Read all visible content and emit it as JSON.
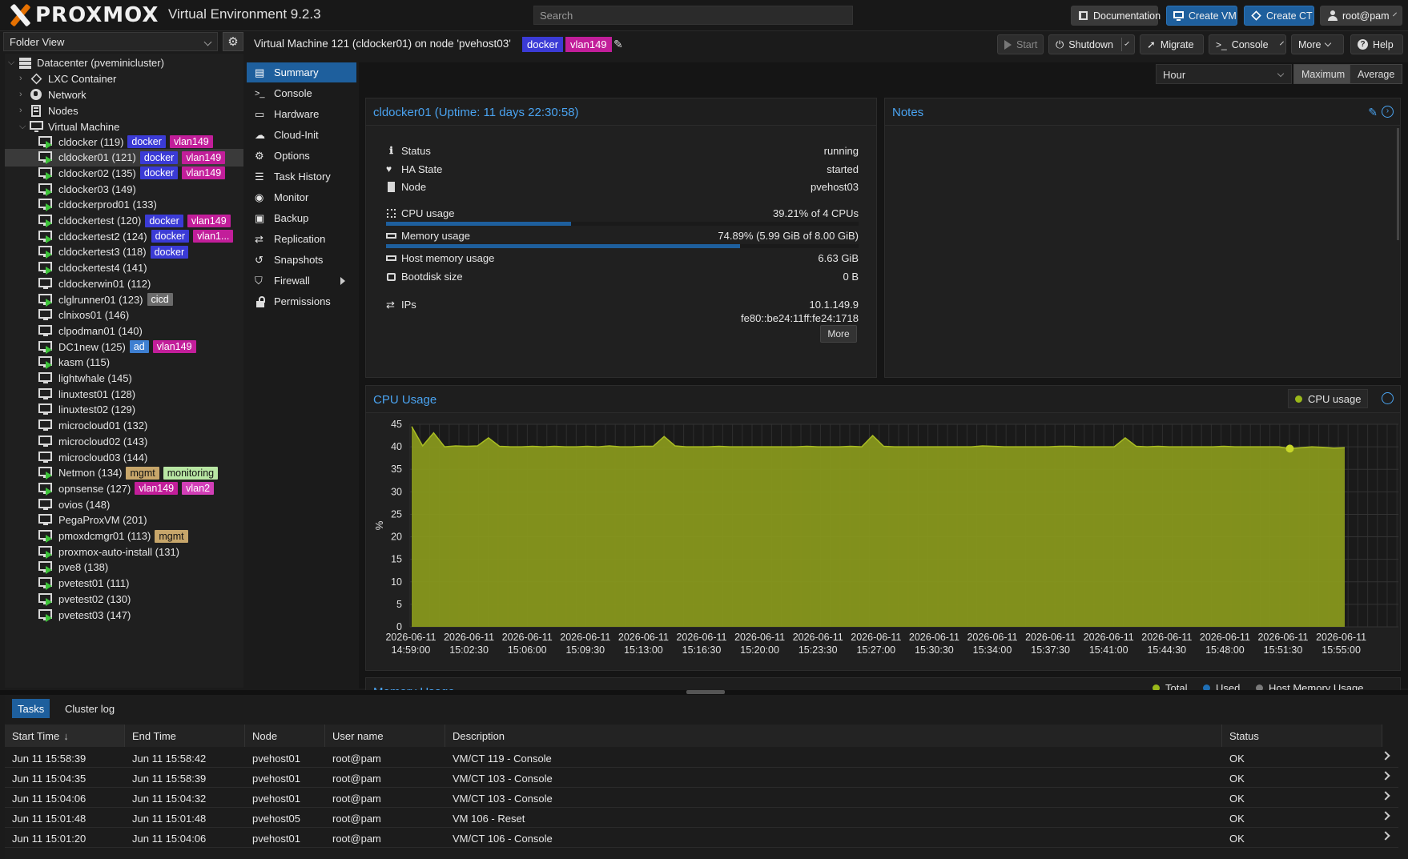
{
  "header": {
    "logo_text": "PROXMOX",
    "product": "Virtual Environment 9.2.3",
    "search_placeholder": "Search",
    "buttons": {
      "documentation": "Documentation",
      "create_vm": "Create VM",
      "create_ct": "Create CT",
      "user": "root@pam"
    }
  },
  "sidebar": {
    "view": "Folder View",
    "datacenter": "Datacenter (pveminicluster)",
    "groups": {
      "lxc": "LXC Container",
      "network": "Network",
      "nodes": "Nodes",
      "vm": "Virtual Machine"
    },
    "vms": [
      {
        "label": "cldocker (119)",
        "running": true,
        "tags": [
          "docker",
          "vlan149"
        ]
      },
      {
        "label": "cldocker01 (121)",
        "running": true,
        "tags": [
          "docker",
          "vlan149"
        ],
        "selected": true
      },
      {
        "label": "cldocker02 (135)",
        "running": true,
        "tags": [
          "docker",
          "vlan149"
        ]
      },
      {
        "label": "cldocker03 (149)",
        "running": true,
        "tags": []
      },
      {
        "label": "cldockerprod01 (133)",
        "running": true,
        "tags": []
      },
      {
        "label": "cldockertest (120)",
        "running": true,
        "tags": [
          "docker",
          "vlan149"
        ]
      },
      {
        "label": "cldockertest2 (124)",
        "running": true,
        "tags": [
          "docker",
          "vlan1..."
        ]
      },
      {
        "label": "cldockertest3 (118)",
        "running": true,
        "tags": [
          "docker"
        ]
      },
      {
        "label": "cldockertest4 (141)",
        "running": true,
        "tags": []
      },
      {
        "label": "cldockerwin01 (112)",
        "running": false,
        "tags": []
      },
      {
        "label": "clglrunner01 (123)",
        "running": true,
        "tags": [
          "cicd"
        ]
      },
      {
        "label": "clnixos01 (146)",
        "running": false,
        "tags": []
      },
      {
        "label": "clpodman01 (140)",
        "running": false,
        "tags": []
      },
      {
        "label": "DC1new (125)",
        "running": true,
        "tags": [
          "ad",
          "vlan149"
        ]
      },
      {
        "label": "kasm (115)",
        "running": true,
        "tags": []
      },
      {
        "label": "lightwhale (145)",
        "running": false,
        "tags": []
      },
      {
        "label": "linuxtest01 (128)",
        "running": false,
        "tags": []
      },
      {
        "label": "linuxtest02 (129)",
        "running": false,
        "tags": []
      },
      {
        "label": "microcloud01 (132)",
        "running": false,
        "tags": []
      },
      {
        "label": "microcloud02 (143)",
        "running": false,
        "tags": []
      },
      {
        "label": "microcloud03 (144)",
        "running": false,
        "tags": []
      },
      {
        "label": "Netmon (134)",
        "running": true,
        "tags": [
          "mgmt",
          "monitoring"
        ]
      },
      {
        "label": "opnsense (127)",
        "running": true,
        "tags": [
          "vlan149",
          "vlan2"
        ]
      },
      {
        "label": "ovios (148)",
        "running": false,
        "tags": []
      },
      {
        "label": "PegaProxVM (201)",
        "running": false,
        "tags": []
      },
      {
        "label": "pmoxdcmgr01 (113)",
        "running": true,
        "tags": [
          "mgmt"
        ]
      },
      {
        "label": "proxmox-auto-install (131)",
        "running": true,
        "tags": []
      },
      {
        "label": "pve8 (138)",
        "running": true,
        "tags": []
      },
      {
        "label": "pvetest01 (111)",
        "running": true,
        "tags": []
      },
      {
        "label": "pvetest02 (130)",
        "running": true,
        "tags": []
      },
      {
        "label": "pvetest03 (147)",
        "running": true,
        "tags": []
      }
    ]
  },
  "tag_colors": {
    "docker": "#3b3bd6",
    "vlan149": "#c21e9a",
    "vlan1...": "#c21e9a",
    "vlan2": "#d23fb7",
    "cicd": "#6b6b6b",
    "ad": "#3e7fd1",
    "mgmt": "#c7a66a",
    "monitoring": "#b8e6a3"
  },
  "content_header": {
    "title": "Virtual Machine 121 (cldocker01) on node 'pvehost03'",
    "tags": [
      "docker",
      "vlan149"
    ],
    "actions": {
      "start": "Start",
      "shutdown": "Shutdown",
      "migrate": "Migrate",
      "console": "Console",
      "more": "More",
      "help": "Help"
    }
  },
  "nav": [
    {
      "label": "Summary",
      "icon": "book-icon",
      "active": true
    },
    {
      "label": "Console",
      "icon": "terminal-icon"
    },
    {
      "label": "Hardware",
      "icon": "monitor-icon"
    },
    {
      "label": "Cloud-Init",
      "icon": "cloud-icon"
    },
    {
      "label": "Options",
      "icon": "gear-icon"
    },
    {
      "label": "Task History",
      "icon": "list-icon"
    },
    {
      "label": "Monitor",
      "icon": "eye-icon"
    },
    {
      "label": "Backup",
      "icon": "floppy-icon"
    },
    {
      "label": "Replication",
      "icon": "retweet-icon"
    },
    {
      "label": "Snapshots",
      "icon": "history-icon"
    },
    {
      "label": "Firewall",
      "icon": "shield-icon",
      "has_submenu": true
    },
    {
      "label": "Permissions",
      "icon": "unlock-icon"
    }
  ],
  "timeframe": {
    "selected": "Hour",
    "modes": [
      "Maximum",
      "Average"
    ],
    "active_mode": "Maximum"
  },
  "summary": {
    "title": "cldocker01 (Uptime: 11 days 22:30:58)",
    "rows": {
      "status": {
        "label": "Status",
        "value": "running"
      },
      "ha_state": {
        "label": "HA State",
        "value": "started"
      },
      "node": {
        "label": "Node",
        "value": "pvehost03"
      },
      "cpu": {
        "label": "CPU usage",
        "value": "39.21% of 4 CPUs",
        "fraction": 0.3921
      },
      "memory": {
        "label": "Memory usage",
        "value": "74.89% (5.99 GiB of 8.00 GiB)",
        "fraction": 0.7489
      },
      "host_memory": {
        "label": "Host memory usage",
        "value": "6.63 GiB"
      },
      "bootdisk": {
        "label": "Bootdisk size",
        "value": "0 B"
      },
      "ips": {
        "label": "IPs",
        "value1": "10.1.149.9",
        "value2": "fe80::be24:11ff:fe24:1718"
      }
    },
    "more": "More"
  },
  "notes": {
    "title": "Notes"
  },
  "chart_data": {
    "type": "area",
    "title": "CPU Usage",
    "ylabel": "%",
    "ylim": [
      0,
      45
    ],
    "yticks": [
      0,
      5,
      10,
      15,
      20,
      25,
      30,
      35,
      40,
      45
    ],
    "xticks": [
      [
        "2026-06-11",
        "14:59:00"
      ],
      [
        "2026-06-11",
        "15:02:30"
      ],
      [
        "2026-06-11",
        "15:06:00"
      ],
      [
        "2026-06-11",
        "15:09:30"
      ],
      [
        "2026-06-11",
        "15:13:00"
      ],
      [
        "2026-06-11",
        "15:16:30"
      ],
      [
        "2026-06-11",
        "15:20:00"
      ],
      [
        "2026-06-11",
        "15:23:30"
      ],
      [
        "2026-06-11",
        "15:27:00"
      ],
      [
        "2026-06-11",
        "15:30:30"
      ],
      [
        "2026-06-11",
        "15:34:00"
      ],
      [
        "2026-06-11",
        "15:37:30"
      ],
      [
        "2026-06-11",
        "15:41:00"
      ],
      [
        "2026-06-11",
        "15:44:30"
      ],
      [
        "2026-06-11",
        "15:48:00"
      ],
      [
        "2026-06-11",
        "15:51:30"
      ],
      [
        "2026-06-11",
        "15:55:00"
      ]
    ],
    "series": [
      {
        "name": "CPU usage",
        "color": "#8a9a1c",
        "values": [
          44.5,
          40.2,
          43.1,
          40.0,
          40.2,
          40.1,
          40.2,
          42.0,
          40.1,
          40.0,
          40.0,
          40.1,
          40.0,
          40.1,
          40.0,
          40.0,
          40.1,
          40.0,
          40.2,
          40.0,
          40.0,
          40.1,
          40.1,
          42.3,
          40.2,
          40.0,
          40.0,
          40.0,
          40.1,
          40.0,
          40.0,
          40.0,
          40.0,
          40.0,
          40.0,
          40.0,
          40.1,
          40.0,
          40.0,
          40.0,
          40.1,
          40.0,
          42.5,
          40.1,
          40.0,
          40.0,
          40.0,
          40.0,
          40.0,
          40.0,
          40.0,
          40.0,
          40.2,
          40.1,
          40.0,
          40.0,
          40.0,
          40.0,
          40.0,
          40.1,
          40.1,
          40.0,
          40.0,
          40.0,
          40.0,
          42.0,
          40.1,
          40.0,
          40.1,
          40.0,
          40.0,
          40.0,
          40.0,
          40.0,
          40.1,
          40.0,
          40.0,
          40.0,
          40.0,
          40.0,
          39.6,
          39.8,
          40.0,
          39.9,
          39.7,
          39.8
        ]
      }
    ]
  },
  "memory_panel": {
    "title": "Memory Usage",
    "legend": [
      {
        "label": "Total",
        "color": "#9ab81a"
      },
      {
        "label": "Used",
        "color": "#1f6fb5"
      },
      {
        "label": "Host Memory Usage",
        "color": "#7a7a7a"
      }
    ]
  },
  "tasks": {
    "tabs": [
      "Tasks",
      "Cluster log"
    ],
    "columns": [
      "Start Time",
      "End Time",
      "Node",
      "User name",
      "Description",
      "Status"
    ],
    "rows": [
      [
        "Jun 11 15:58:39",
        "Jun 11 15:58:42",
        "pvehost01",
        "root@pam",
        "VM/CT 119 - Console",
        "OK"
      ],
      [
        "Jun 11 15:04:35",
        "Jun 11 15:58:39",
        "pvehost01",
        "root@pam",
        "VM/CT 103 - Console",
        "OK"
      ],
      [
        "Jun 11 15:04:06",
        "Jun 11 15:04:32",
        "pvehost01",
        "root@pam",
        "VM/CT 103 - Console",
        "OK"
      ],
      [
        "Jun 11 15:01:48",
        "Jun 11 15:01:48",
        "pvehost05",
        "root@pam",
        "VM 106 - Reset",
        "OK"
      ],
      [
        "Jun 11 15:01:20",
        "Jun 11 15:04:06",
        "pvehost01",
        "root@pam",
        "VM/CT 106 - Console",
        "OK"
      ]
    ]
  }
}
